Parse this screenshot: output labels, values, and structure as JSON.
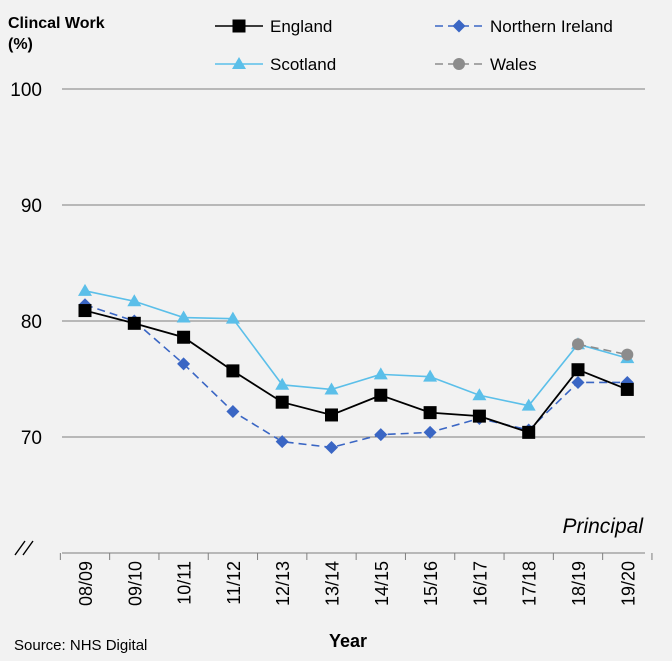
{
  "chart_data": {
    "type": "line",
    "y_title_line1": "Clincal Work",
    "y_title_line2": "(%)",
    "xlabel": "Year",
    "annotation": "Principal",
    "source": "Source: NHS Digital",
    "ylim": [
      62,
      100
    ],
    "yticks": [
      70,
      80,
      90,
      100
    ],
    "grid": true,
    "legend_position": "top",
    "categories": [
      "08/09",
      "09/10",
      "10/11",
      "11/12",
      "12/13",
      "13/14",
      "14/15",
      "15/16",
      "16/17",
      "17/18",
      "18/19",
      "19/20"
    ],
    "series": [
      {
        "name": "England",
        "color": "#000000",
        "marker": "square",
        "dash": "solid",
        "values": [
          80.9,
          79.8,
          78.6,
          75.7,
          73.0,
          71.9,
          73.6,
          72.1,
          71.8,
          70.4,
          75.8,
          74.1
        ]
      },
      {
        "name": "Northern Ireland",
        "color": "#3a66c4",
        "marker": "diamond",
        "dash": "dashed",
        "values": [
          81.4,
          80.0,
          76.3,
          72.2,
          69.6,
          69.1,
          70.2,
          70.4,
          71.6,
          70.6,
          74.7,
          74.7
        ]
      },
      {
        "name": "Scotland",
        "color": "#5bbfe9",
        "marker": "triangle",
        "dash": "solid",
        "values": [
          82.6,
          81.7,
          80.3,
          80.2,
          74.5,
          74.1,
          75.4,
          75.2,
          73.6,
          72.7,
          78.0,
          76.8
        ]
      },
      {
        "name": "Wales",
        "color": "#8c8c8c",
        "marker": "circle",
        "dash": "dashed",
        "values": [
          null,
          null,
          null,
          null,
          null,
          null,
          null,
          null,
          null,
          null,
          78.0,
          77.1
        ]
      }
    ]
  }
}
